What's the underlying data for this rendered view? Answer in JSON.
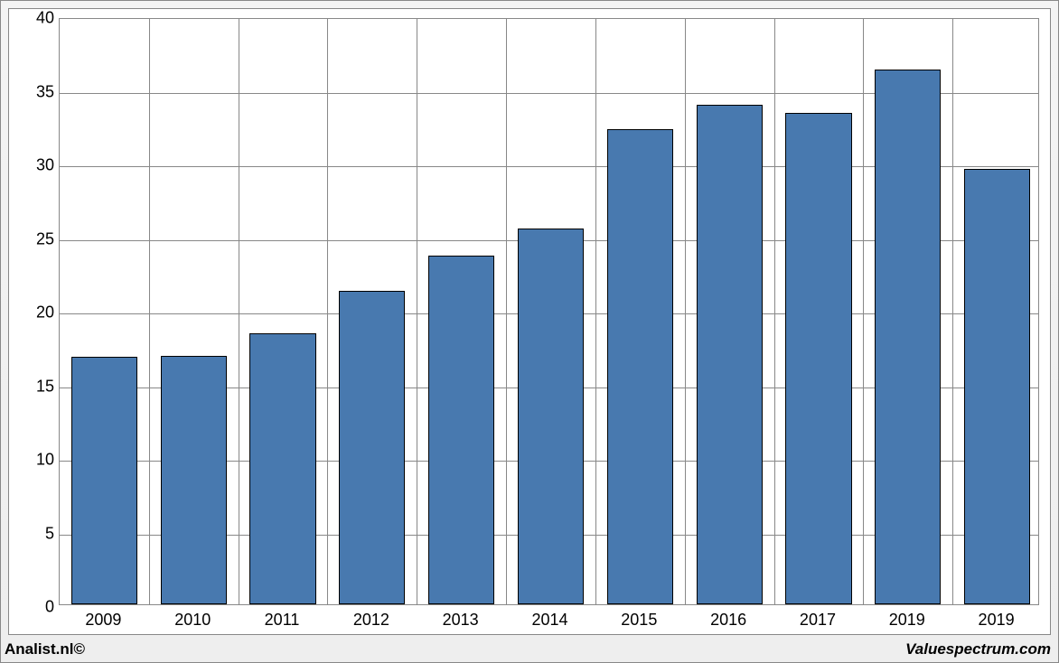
{
  "chart": {
    "type": "bar",
    "categories": [
      "2009",
      "2010",
      "2011",
      "2012",
      "2013",
      "2014",
      "2015",
      "2016",
      "2017",
      "2019",
      "2019"
    ],
    "values": [
      16.8,
      16.9,
      18.4,
      21.3,
      23.7,
      25.5,
      32.3,
      33.9,
      33.4,
      36.3,
      29.6
    ],
    "bar_color": "#4879af",
    "bar_border_color": "#000000",
    "bar_width_ratio": 0.74,
    "ylim": [
      0,
      40
    ],
    "ytick_step": 5,
    "y_ticks": [
      0,
      5,
      10,
      15,
      20,
      25,
      30,
      35,
      40
    ],
    "grid_color": "#888888",
    "background_color": "#ffffff",
    "outer_background": "#f0f0f0",
    "label_fontsize": 18,
    "label_color": "#000000"
  },
  "footer": {
    "left": "Analist.nl©",
    "right": "Valuespectrum.com"
  }
}
